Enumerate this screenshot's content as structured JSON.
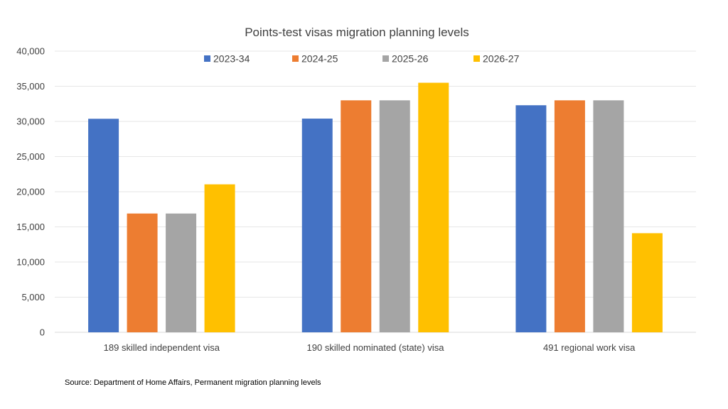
{
  "chart_data": {
    "type": "bar",
    "title": "Points-test visas migration planning levels",
    "categories": [
      "189 skilled independent visa",
      "190 skilled nominated (state) visa",
      "491 regional work visa"
    ],
    "series": [
      {
        "name": "2023-34",
        "color": "#4472C4",
        "values": [
          30375,
          30400,
          32300
        ]
      },
      {
        "name": "2024-25",
        "color": "#ED7D31",
        "values": [
          16900,
          33000,
          33000
        ]
      },
      {
        "name": "2025-26",
        "color": "#A5A5A5",
        "values": [
          16900,
          33000,
          33000
        ]
      },
      {
        "name": "2026-27",
        "color": "#FFC000",
        "values": [
          21050,
          35500,
          14100
        ]
      }
    ],
    "ylim": [
      0,
      40000
    ],
    "yticks": [
      "0",
      "5,000",
      "10,000",
      "15,000",
      "20,000",
      "25,000",
      "30,000",
      "35,000",
      "40,000"
    ],
    "ytick_values": [
      0,
      5000,
      10000,
      15000,
      20000,
      25000,
      30000,
      35000,
      40000
    ],
    "grid": true,
    "legend_position": "top"
  },
  "source": "Source: Department of Home Affairs, Permanent migration planning levels"
}
